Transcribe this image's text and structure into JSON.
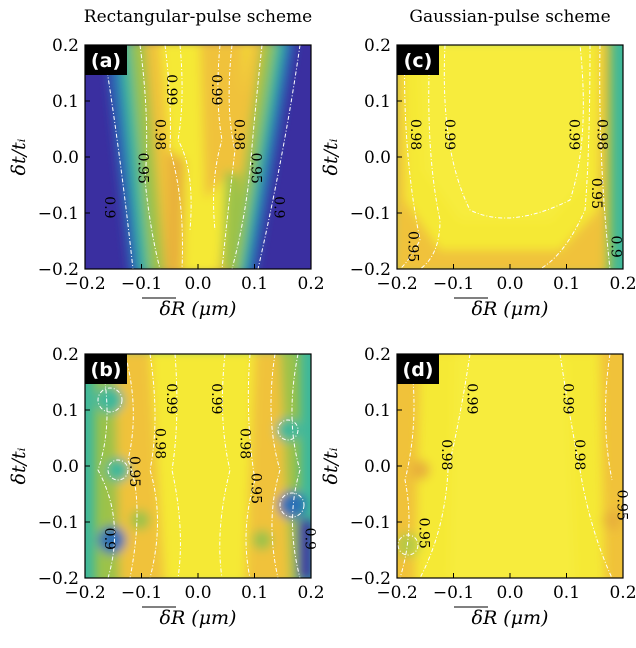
{
  "column_titles": [
    "Rectangular-pulse scheme",
    "Gaussian-pulse scheme"
  ],
  "colors": {
    "high": "#f5e934",
    "mid_high": "#f0c23a",
    "mid": "#9cc24a",
    "low_mid": "#3fb89a",
    "low": "#2a6fb5",
    "lowest": "#3a2fa0",
    "contour": "#ffffff",
    "tag_bg": "#000000"
  },
  "chart_data": [
    {
      "type": "heatmap",
      "panel": "(a)",
      "xlabel": "δR (μm)",
      "ylabel": "δt/t_i",
      "xlim": [
        -0.2,
        0.2
      ],
      "ylim": [
        -0.2,
        0.2
      ],
      "xticks": [
        "−0.2",
        "−0.1",
        "0.0",
        "0.1",
        "0.2"
      ],
      "yticks": [
        "0.2",
        "0.1",
        "0.0",
        "−0.1",
        "−0.2"
      ],
      "contour_levels": [
        "0.9",
        "0.95",
        "0.98",
        "0.99"
      ],
      "contour_labels": [
        {
          "text": "0.99",
          "x": -0.055,
          "y": 0.12
        },
        {
          "text": "0.99",
          "x": 0.025,
          "y": 0.12
        },
        {
          "text": "0.98",
          "x": -0.075,
          "y": 0.04
        },
        {
          "text": "0.98",
          "x": 0.065,
          "y": 0.04
        },
        {
          "text": "0.95",
          "x": -0.105,
          "y": -0.02
        },
        {
          "text": "0.95",
          "x": 0.095,
          "y": -0.02
        },
        {
          "text": "0.9",
          "x": -0.165,
          "y": -0.09
        },
        {
          "text": "0.9",
          "x": 0.135,
          "y": -0.09
        }
      ],
      "x_show_ticks": false
    },
    {
      "type": "heatmap",
      "panel": "(c)",
      "xlabel": "δR (μm)",
      "ylabel": "δt/t_i",
      "xlim": [
        -0.2,
        0.2
      ],
      "ylim": [
        -0.2,
        0.2
      ],
      "xticks": [
        "−0.2",
        "−0.1",
        "0.0",
        "0.1",
        "0.2"
      ],
      "yticks": [
        "0.2",
        "0.1",
        "0.0",
        "−0.1",
        "−0.2"
      ],
      "contour_levels": [
        "0.9",
        "0.95",
        "0.98",
        "0.99"
      ],
      "contour_labels": [
        {
          "text": "0.98",
          "x": -0.175,
          "y": 0.04
        },
        {
          "text": "0.99",
          "x": -0.115,
          "y": 0.04
        },
        {
          "text": "0.99",
          "x": 0.105,
          "y": 0.04
        },
        {
          "text": "0.98",
          "x": 0.155,
          "y": 0.04
        },
        {
          "text": "0.95",
          "x": 0.145,
          "y": -0.065
        },
        {
          "text": "0.95",
          "x": -0.18,
          "y": -0.16
        },
        {
          "text": "0.9",
          "x": 0.18,
          "y": -0.16
        }
      ]
    },
    {
      "type": "heatmap",
      "panel": "(b)",
      "xlabel": "δR (μm)",
      "ylabel": "δt/t_i",
      "xlim": [
        -0.2,
        0.2
      ],
      "ylim": [
        -0.2,
        0.2
      ],
      "xticks": [
        "−0.2",
        "−0.1",
        "0.0",
        "0.1",
        "0.2"
      ],
      "yticks": [
        "0.2",
        "0.1",
        "0.0",
        "−0.1",
        "−0.2"
      ],
      "contour_levels": [
        "0.9",
        "0.95",
        "0.98",
        "0.99"
      ],
      "contour_labels": [
        {
          "text": "0.99",
          "x": -0.055,
          "y": 0.12
        },
        {
          "text": "0.99",
          "x": 0.025,
          "y": 0.12
        },
        {
          "text": "0.98",
          "x": -0.075,
          "y": 0.04
        },
        {
          "text": "0.98",
          "x": 0.075,
          "y": 0.04
        },
        {
          "text": "0.95",
          "x": -0.12,
          "y": -0.01
        },
        {
          "text": "0.95",
          "x": 0.095,
          "y": -0.04
        },
        {
          "text": "0.9",
          "x": -0.165,
          "y": -0.13
        },
        {
          "text": "0.9",
          "x": 0.19,
          "y": -0.13
        }
      ]
    },
    {
      "type": "heatmap",
      "panel": "(d)",
      "xlabel": "δR (μm)",
      "ylabel": "δt/t_i",
      "xlim": [
        -0.2,
        0.2
      ],
      "ylim": [
        -0.2,
        0.2
      ],
      "xticks": [
        "−0.2",
        "−0.1",
        "0.0",
        "0.1",
        "0.2"
      ],
      "yticks": [
        "0.2",
        "0.1",
        "0.0",
        "−0.1",
        "−0.2"
      ],
      "contour_levels": [
        "0.95",
        "0.98",
        "0.99"
      ],
      "contour_labels": [
        {
          "text": "0.99",
          "x": -0.075,
          "y": 0.12
        },
        {
          "text": "0.99",
          "x": 0.095,
          "y": 0.12
        },
        {
          "text": "0.98",
          "x": -0.12,
          "y": 0.02
        },
        {
          "text": "0.98",
          "x": 0.115,
          "y": 0.02
        },
        {
          "text": "0.95",
          "x": -0.16,
          "y": -0.12
        },
        {
          "text": "0.95",
          "x": 0.19,
          "y": -0.07
        }
      ]
    }
  ]
}
